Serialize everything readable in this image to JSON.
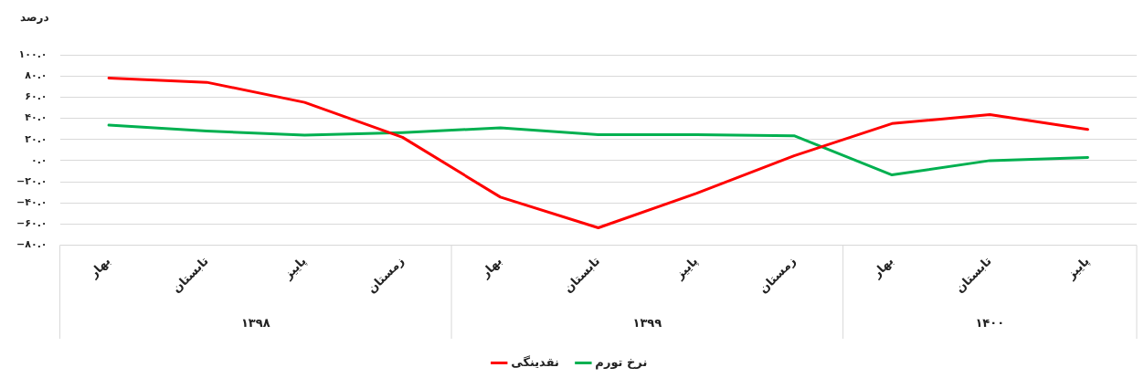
{
  "chart_data": {
    "type": "line",
    "ylabel": "درصد",
    "categories": [
      "بهار",
      "تابستان",
      "پاییز",
      "زمستان",
      "بهار",
      "تابستان",
      "پاییز",
      "زمستان",
      "بهار",
      "تابستان",
      "پاییز"
    ],
    "annotations": [
      "۱۳۹۸",
      "۱۳۹۹",
      "۱۴۰۰"
    ],
    "series": [
      {
        "name": "نقدینگی",
        "color": "#ff0000",
        "values": [
          78,
          74,
          55,
          22,
          -34.5,
          -63.5,
          -31,
          4.5,
          35,
          43.5,
          29.5
        ]
      },
      {
        "name": "نرخ تورم",
        "color": "#00b050",
        "values": [
          33.5,
          28,
          24,
          26.5,
          31,
          24.5,
          24.5,
          23.5,
          -13.5,
          0,
          3
        ]
      }
    ],
    "ylim": [
      -80,
      100
    ],
    "yticks": [
      {
        "value": 100,
        "label": "۱۰۰.۰"
      },
      {
        "value": 80,
        "label": "۸۰.۰"
      },
      {
        "value": 60,
        "label": "۶۰.۰"
      },
      {
        "value": 40,
        "label": "۴۰.۰"
      },
      {
        "value": 20,
        "label": "۲۰.۰"
      },
      {
        "value": 0,
        "label": "۰.۰"
      },
      {
        "value": -20,
        "label": "−۲۰.۰"
      },
      {
        "value": -40,
        "label": "−۴۰.۰"
      },
      {
        "value": -60,
        "label": "−۶۰.۰"
      },
      {
        "value": -80,
        "label": "−۸۰.۰"
      }
    ],
    "grid": "y",
    "legend": "bottom",
    "marker": "none",
    "line_style": "solid"
  }
}
